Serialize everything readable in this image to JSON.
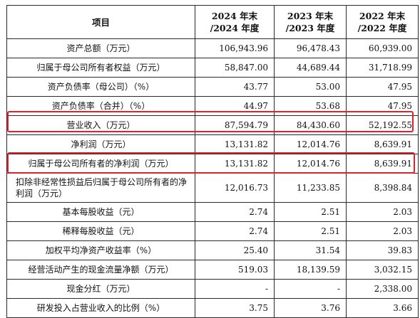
{
  "table": {
    "headers": {
      "item": "项目",
      "col2024": "2024 年末 /2024 年度",
      "col2023": "2023 年末 /2023 年度",
      "col2022": "2022 年末 /2022 年度"
    },
    "rows": [
      {
        "item": "资产总额（万元）",
        "v2024": "106,943.96",
        "v2023": "96,478.43",
        "v2022": "60,939.00"
      },
      {
        "item": "归属于母公司所有者权益（万元）",
        "v2024": "58,847.00",
        "v2023": "44,689.44",
        "v2022": "31,718.99"
      },
      {
        "item": "资产负债率（母公司）（%）",
        "v2024": "43.77",
        "v2023": "53.00",
        "v2022": "47.95"
      },
      {
        "item": "资产负债率（合并）（%）",
        "v2024": "44.97",
        "v2023": "53.68",
        "v2022": "47.95"
      },
      {
        "item": "营业收入（万元）",
        "v2024": "87,594.79",
        "v2023": "84,430.60",
        "v2022": "52,192.55",
        "highlighted": true
      },
      {
        "item": "净利润（万元）",
        "v2024": "13,131.82",
        "v2023": "12,014.76",
        "v2022": "8,639.91"
      },
      {
        "item": "归属于母公司所有者的净利润（万元）",
        "v2024": "13,131.82",
        "v2023": "12,014.76",
        "v2022": "8,639.91",
        "highlighted": true
      },
      {
        "item": "扣除非经常性损益后归属于母公司所有者的净利润（万元）",
        "v2024": "12,016.73",
        "v2023": "11,233.85",
        "v2022": "8,398.84"
      },
      {
        "item": "基本每股收益（元）",
        "v2024": "2.74",
        "v2023": "2.51",
        "v2022": "2.03"
      },
      {
        "item": "稀释每股收益（元）",
        "v2024": "2.74",
        "v2023": "2.51",
        "v2022": "2.03"
      },
      {
        "item": "加权平均净资产收益率（%）",
        "v2024": "25.40",
        "v2023": "31.54",
        "v2022": "39.83"
      },
      {
        "item": "经营活动产生的现金流量净额（万元）",
        "v2024": "519.03",
        "v2023": "18,139.59",
        "v2022": "3,032.15"
      },
      {
        "item": "现金分红（万元）",
        "v2024": "-",
        "v2023": "-",
        "v2022": "2,338.00"
      },
      {
        "item": "研发投入占营业收入的比例（%）",
        "v2024": "3.75",
        "v2023": "3.76",
        "v2022": "3.66"
      }
    ]
  },
  "highlight_color": "#d9232e"
}
